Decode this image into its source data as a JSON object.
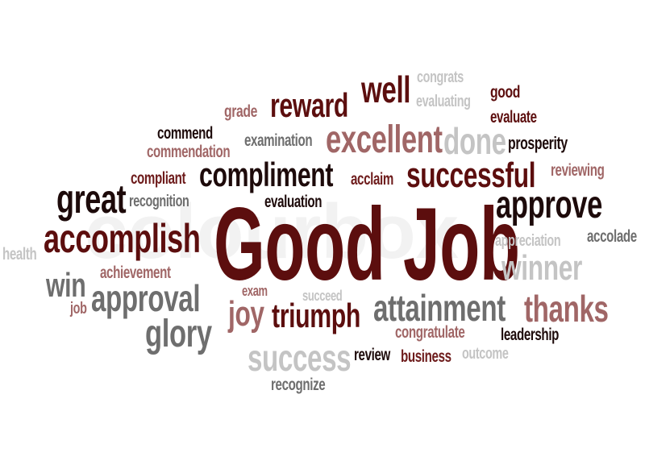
{
  "word_cloud": {
    "main": "Good Job",
    "words": {
      "congrats": "congrats",
      "good": "good",
      "well": "well",
      "grade": "grade",
      "reward": "reward",
      "evaluating": "evaluating",
      "evaluate": "evaluate",
      "commend": "commend",
      "examination": "examination",
      "excellent": "excellent",
      "done": "done",
      "prosperity": "prosperity",
      "commendation": "commendation",
      "compliant": "compliant",
      "compliment": "compliment",
      "acclaim": "acclaim",
      "successful": "successful",
      "reviewing": "reviewing",
      "great": "great",
      "recognition": "recognition",
      "evaluation": "evaluation",
      "approve": "approve",
      "accomplish": "accomplish",
      "accolade": "accolade",
      "health": "health",
      "appreciation": "appreciation",
      "achievement": "achievement",
      "winner": "winner",
      "win": "win",
      "exam": "exam",
      "succeed": "succeed",
      "approval": "approval",
      "attainment": "attainment",
      "thanks": "thanks",
      "job": "job",
      "joy": "joy",
      "triumph": "triumph",
      "glory": "glory",
      "congratulate": "congratulate",
      "leadership": "leadership",
      "success": "success",
      "review": "review",
      "business": "business",
      "outcome": "outcome",
      "recognize": "recognize"
    },
    "watermark": "colourbox"
  },
  "colors": {
    "dark_maroon": "#5c0e0e",
    "maroon": "#6e1c1c",
    "rose": "#a06666",
    "grey": "#6e6e6e",
    "light_grey": "#c4c4c4",
    "near_black": "#1d0a0a"
  }
}
